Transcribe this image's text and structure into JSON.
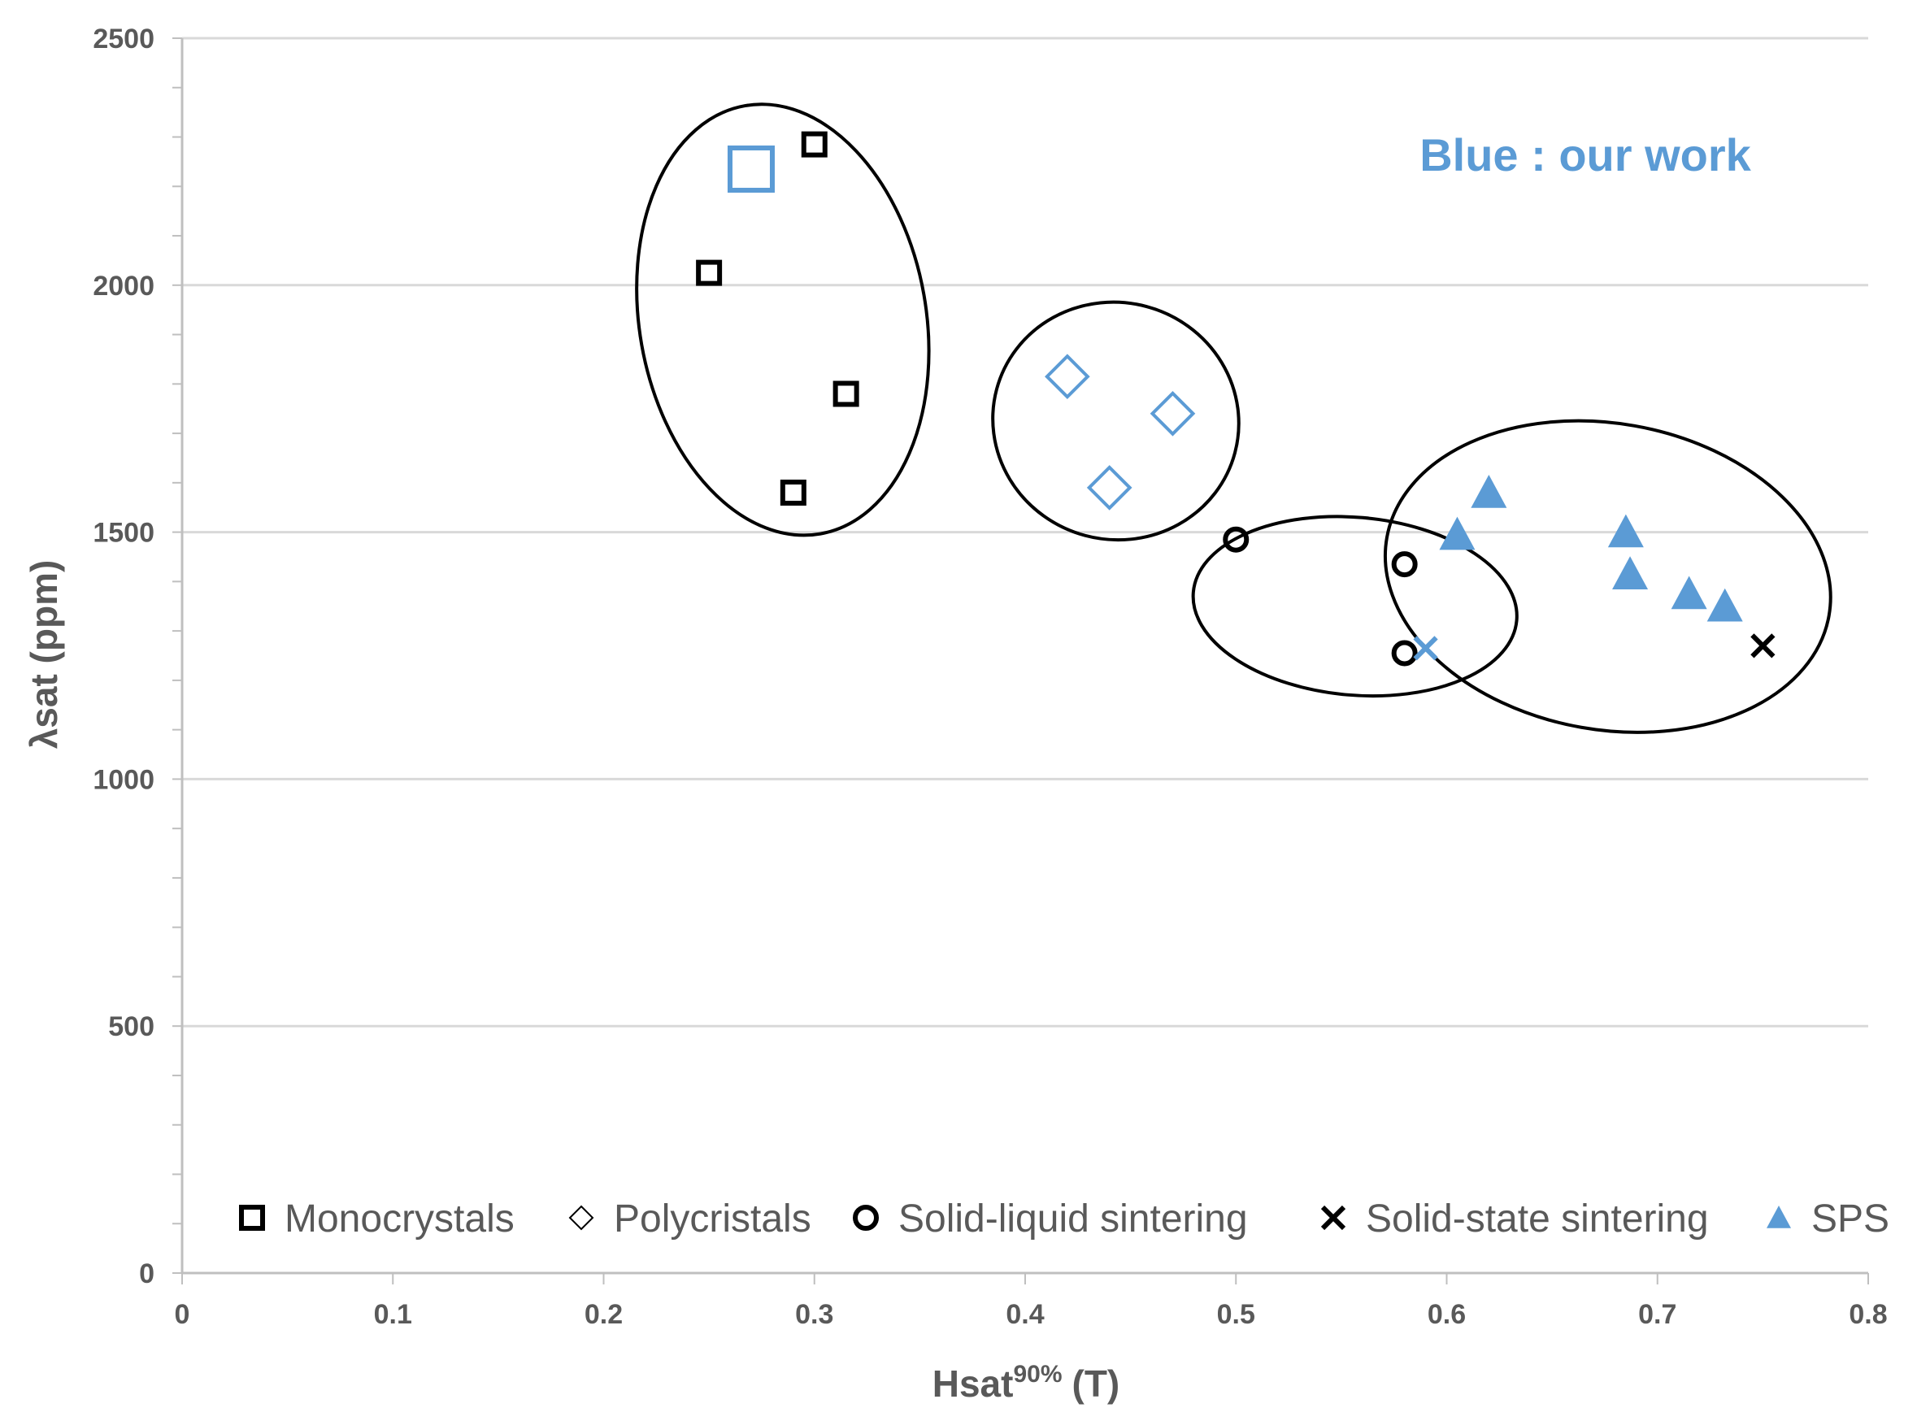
{
  "chart_data": {
    "type": "scatter",
    "xlabel": "Hsat",
    "xlabel_sup": "90%",
    "xlabel_suffix": "(T)",
    "ylabel": "λsat (ppm)",
    "xlim": [
      0,
      0.8
    ],
    "ylim": [
      0,
      2500
    ],
    "x_ticks": [
      "0",
      "0.1",
      "0.2",
      "0.3",
      "0.4",
      "0.5",
      "0.6",
      "0.7",
      "0.8"
    ],
    "y_ticks": [
      "0",
      "500",
      "1000",
      "1500",
      "2000",
      "2500"
    ],
    "grid": true,
    "legend_position": "bottom",
    "annotation": {
      "text": "Blue : our work",
      "color": "#5b9bd5"
    },
    "colors": {
      "black": "#000000",
      "blue": "#5b9bd5"
    },
    "series": [
      {
        "name": "Monocrystals",
        "marker": "square",
        "points": [
          {
            "x": 0.25,
            "y": 2025,
            "color": "#000000"
          },
          {
            "x": 0.3,
            "y": 2285,
            "color": "#000000"
          },
          {
            "x": 0.315,
            "y": 1780,
            "color": "#000000"
          },
          {
            "x": 0.29,
            "y": 1580,
            "color": "#000000"
          },
          {
            "x": 0.27,
            "y": 2235,
            "color": "#5b9bd5",
            "large": true
          }
        ]
      },
      {
        "name": "Polycristals",
        "marker": "diamond",
        "points": [
          {
            "x": 0.42,
            "y": 1815,
            "color": "#5b9bd5"
          },
          {
            "x": 0.47,
            "y": 1740,
            "color": "#5b9bd5"
          },
          {
            "x": 0.44,
            "y": 1590,
            "color": "#5b9bd5"
          }
        ]
      },
      {
        "name": "Solid-liquid sintering",
        "marker": "circle",
        "points": [
          {
            "x": 0.5,
            "y": 1485,
            "color": "#000000"
          },
          {
            "x": 0.58,
            "y": 1435,
            "color": "#000000"
          },
          {
            "x": 0.58,
            "y": 1255,
            "color": "#000000"
          }
        ]
      },
      {
        "name": "Solid-state sintering",
        "marker": "cross",
        "points": [
          {
            "x": 0.59,
            "y": 1265,
            "color": "#5b9bd5"
          },
          {
            "x": 0.75,
            "y": 1270,
            "color": "#000000"
          }
        ]
      },
      {
        "name": "SPS",
        "marker": "triangle",
        "points": [
          {
            "x": 0.605,
            "y": 1495,
            "color": "#5b9bd5"
          },
          {
            "x": 0.62,
            "y": 1580,
            "color": "#5b9bd5"
          },
          {
            "x": 0.685,
            "y": 1500,
            "color": "#5b9bd5"
          },
          {
            "x": 0.687,
            "y": 1415,
            "color": "#5b9bd5"
          },
          {
            "x": 0.715,
            "y": 1375,
            "color": "#5b9bd5"
          },
          {
            "x": 0.732,
            "y": 1350,
            "color": "#5b9bd5"
          }
        ]
      }
    ],
    "groupings": [
      {
        "name": "monocrystals-group",
        "cx": 0.285,
        "cy": 1930,
        "rx": 0.068,
        "ry": 440,
        "rotation": -10
      },
      {
        "name": "polycristals-group",
        "cx": 0.443,
        "cy": 1725,
        "rx": 0.0585,
        "ry": 240,
        "rotation": 15
      },
      {
        "name": "solid-liquid-group",
        "cx": 0.5565,
        "cy": 1350,
        "rx": 0.077,
        "ry": 180,
        "rotation": 5
      },
      {
        "name": "sps-group",
        "cx": 0.6765,
        "cy": 1410,
        "rx": 0.1065,
        "ry": 310,
        "rotation": 10
      }
    ]
  }
}
